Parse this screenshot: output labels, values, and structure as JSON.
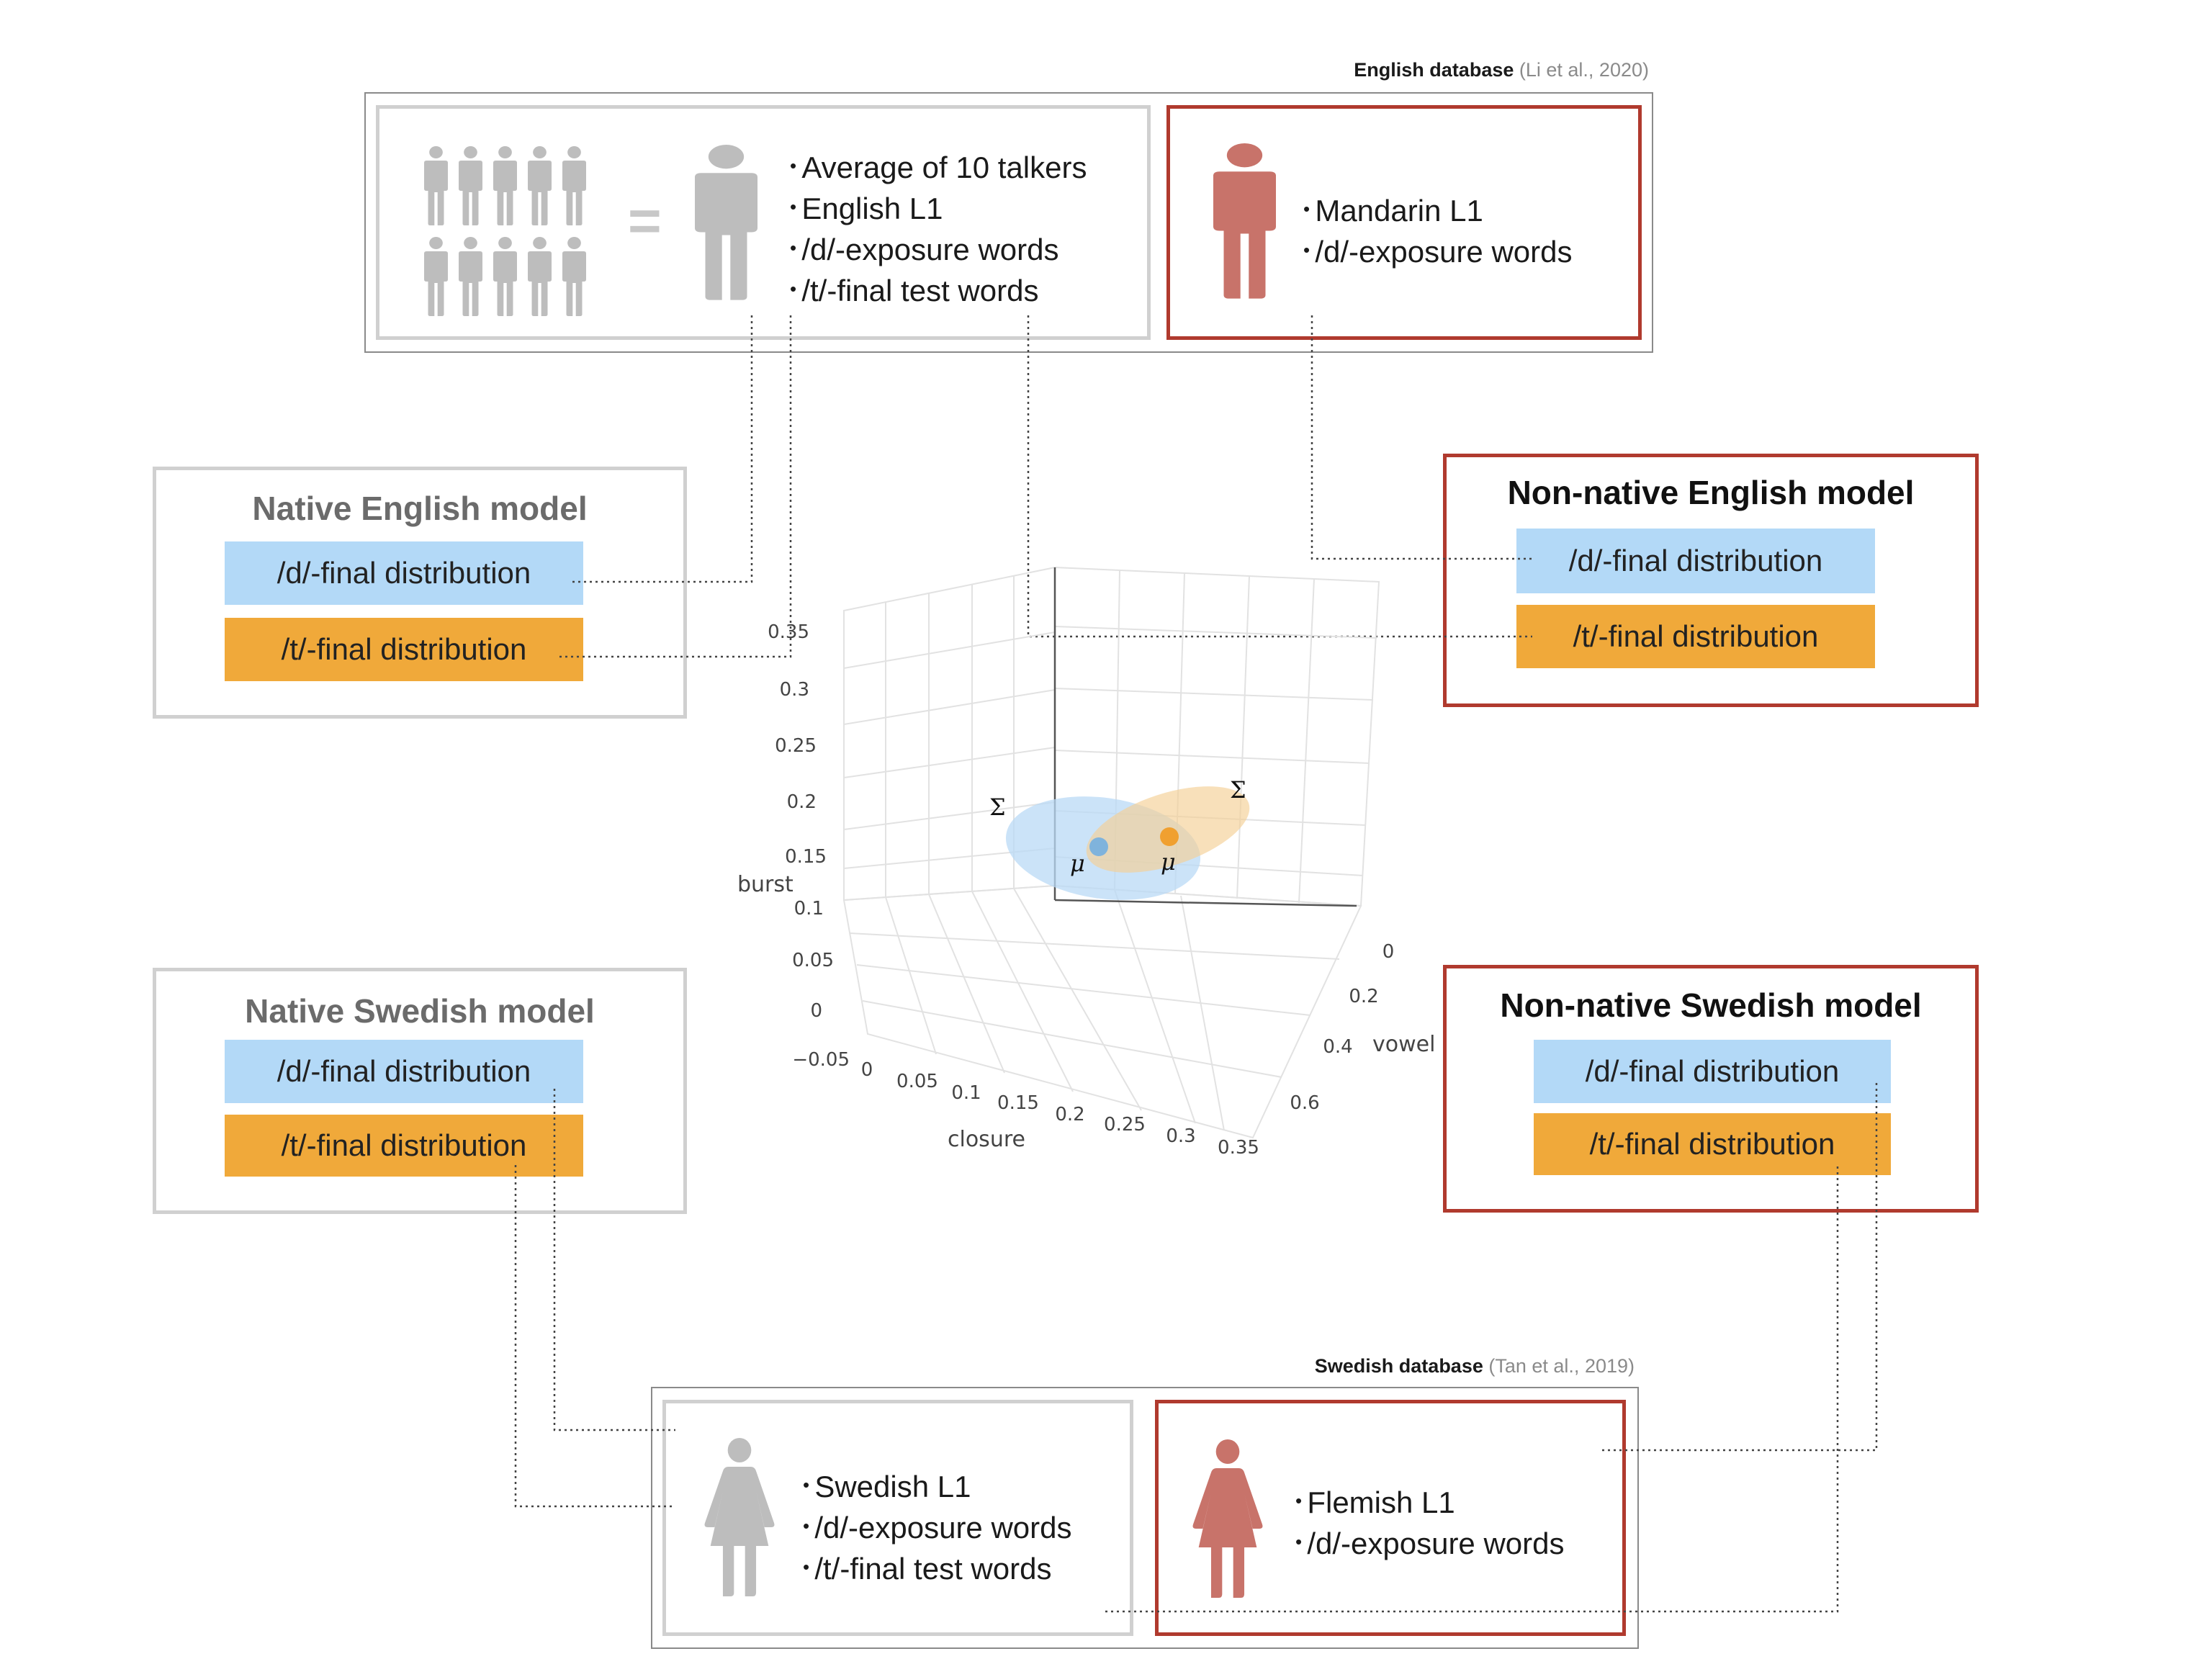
{
  "english_db": {
    "label_bold": "English database",
    "label_cite": "(Li et al., 2020)",
    "native_box": {
      "bullets": [
        "Average of 10 talkers",
        "English L1",
        "/d/-exposure words",
        "/t/-final test words"
      ]
    },
    "nonnative_box": {
      "bullets": [
        "Mandarin L1",
        "/d/-exposure words"
      ]
    },
    "equals": "="
  },
  "swedish_db": {
    "label_bold": "Swedish database",
    "label_cite": "(Tan et al., 2019)",
    "native_box": {
      "bullets": [
        "Swedish L1",
        "/d/-exposure words",
        "/t/-final test words"
      ]
    },
    "nonnative_box": {
      "bullets": [
        "Flemish L1",
        "/d/-exposure words"
      ]
    }
  },
  "models": {
    "native_english": {
      "title": "Native English model",
      "d_dist": "/d/-final distribution",
      "t_dist": "/t/-final distribution"
    },
    "nonnative_english": {
      "title": "Non-native English model",
      "d_dist": "/d/-final distribution",
      "t_dist": "/t/-final distribution"
    },
    "native_swedish": {
      "title": "Native Swedish model",
      "d_dist": "/d/-final distribution",
      "t_dist": "/t/-final distribution"
    },
    "nonnative_swedish": {
      "title": "Non-native Swedish model",
      "d_dist": "/d/-final distribution",
      "t_dist": "/t/-final distribution"
    }
  },
  "plot3d": {
    "axis_burst": "burst",
    "axis_closure": "closure",
    "axis_vowel": "vowel",
    "burst_ticks": [
      "0.35",
      "0.3",
      "0.25",
      "0.2",
      "0.15",
      "0.1",
      "0.05",
      "0",
      "−0.05"
    ],
    "closure_ticks": [
      "0",
      "0.05",
      "0.1",
      "0.15",
      "0.2",
      "0.25",
      "0.3",
      "0.35"
    ],
    "vowel_ticks": [
      "0",
      "0.2",
      "0.4",
      "0.6"
    ],
    "mu": "μ",
    "sigma": "Σ"
  },
  "colors": {
    "red_border": "#b03a2e",
    "gray_border": "#d0d0d0",
    "person_gray": "#bdbdbd",
    "person_red": "#c8736a",
    "d_blue": "#b3d9f7",
    "t_orange": "#f0a93a",
    "mu_blue": "#7fb3dc",
    "mu_orange": "#f0a030"
  },
  "icons": {
    "talker_group": "person-group-icon",
    "male_talker": "male-person-icon",
    "female_talker": "female-person-icon"
  }
}
